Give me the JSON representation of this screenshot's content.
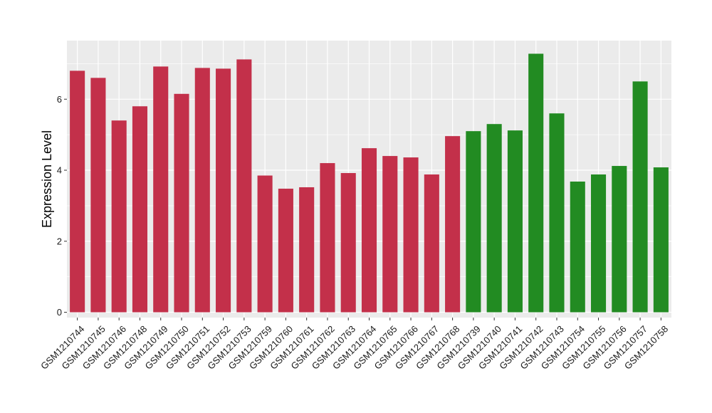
{
  "chart_data": {
    "type": "bar",
    "title": "",
    "xlabel": "",
    "ylabel": "Expression Level",
    "ylim": [
      -0.15,
      7.65
    ],
    "yticks": [
      0,
      2,
      4,
      6
    ],
    "grid": true,
    "legend": "none",
    "colors": {
      "group_1": "#c3304a",
      "group_2": "#228b22",
      "panel": "#ebebeb",
      "grid": "#ffffff"
    },
    "categories": [
      "GSM1210744",
      "GSM1210745",
      "GSM1210746",
      "GSM1210748",
      "GSM1210749",
      "GSM1210750",
      "GSM1210751",
      "GSM1210752",
      "GSM1210753",
      "GSM1210759",
      "GSM1210760",
      "GSM1210761",
      "GSM1210762",
      "GSM1210763",
      "GSM1210764",
      "GSM1210765",
      "GSM1210766",
      "GSM1210767",
      "GSM1210768",
      "GSM1210739",
      "GSM1210740",
      "GSM1210741",
      "GSM1210742",
      "GSM1210743",
      "GSM1210754",
      "GSM1210755",
      "GSM1210756",
      "GSM1210757",
      "GSM1210758"
    ],
    "values": [
      6.8,
      6.6,
      5.4,
      5.8,
      6.92,
      6.15,
      6.88,
      6.86,
      7.12,
      3.85,
      3.48,
      3.52,
      4.2,
      3.92,
      4.62,
      4.4,
      4.36,
      3.88,
      4.96,
      5.1,
      5.3,
      5.12,
      7.28,
      5.6,
      3.68,
      3.88,
      4.12,
      6.5,
      4.08
    ],
    "groups": [
      1,
      1,
      1,
      1,
      1,
      1,
      1,
      1,
      1,
      1,
      1,
      1,
      1,
      1,
      1,
      1,
      1,
      1,
      1,
      2,
      2,
      2,
      2,
      2,
      2,
      2,
      2,
      2,
      2
    ]
  }
}
